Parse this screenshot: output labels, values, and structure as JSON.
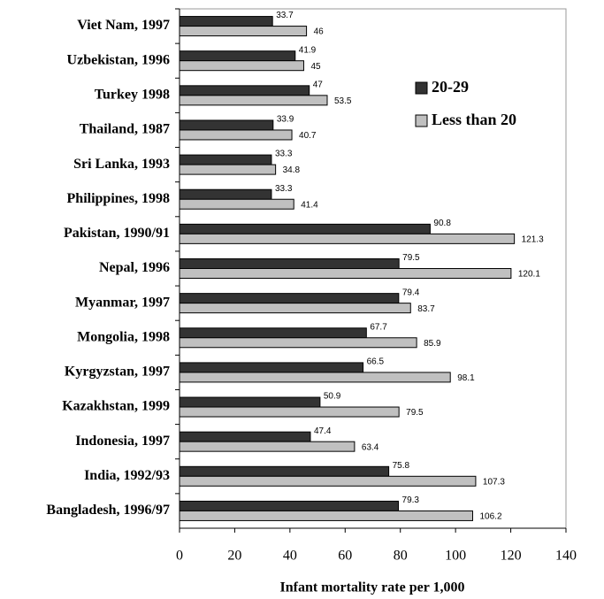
{
  "chart_data": {
    "type": "bar",
    "orientation": "horizontal",
    "x_label": "Infant mortality rate per 1,000",
    "categories": [
      "Viet Nam, 1997",
      "Uzbekistan, 1996",
      "Turkey 1998",
      "Thailand, 1987",
      "Sri Lanka, 1993",
      "Philippines, 1998",
      "Pakistan, 1990/91",
      "Nepal, 1996",
      "Myanmar, 1997",
      "Mongolia, 1998",
      "Kyrgyzstan, 1997",
      "Kazakhstan, 1999",
      "Indonesia, 1997",
      "India, 1992/93",
      "Bangladesh, 1996/97"
    ],
    "series": [
      {
        "name": "20-29",
        "color": "#333333",
        "values": [
          33.7,
          41.9,
          47,
          33.9,
          33.3,
          33.3,
          90.8,
          79.5,
          79.4,
          67.7,
          66.5,
          50.9,
          47.4,
          75.8,
          79.3
        ]
      },
      {
        "name": "Less than 20",
        "color": "#c0c0c0",
        "values": [
          46,
          45,
          53.5,
          40.7,
          34.8,
          41.4,
          121.3,
          120.1,
          83.7,
          85.9,
          98.1,
          79.5,
          63.4,
          107.3,
          106.2
        ]
      }
    ],
    "xlim": [
      0,
      140
    ],
    "xticks": [
      0,
      20,
      40,
      60,
      80,
      100,
      120,
      140
    ],
    "legend": "upper right",
    "grid": false
  }
}
